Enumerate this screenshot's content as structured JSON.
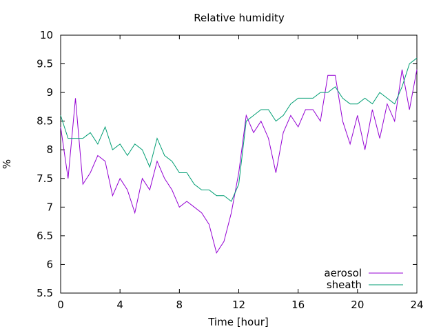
{
  "chart_data": {
    "type": "line",
    "title": "Relative humidity",
    "xlabel": "Time [hour]",
    "ylabel": "%",
    "xlim": [
      0,
      24
    ],
    "ylim": [
      5.5,
      10
    ],
    "xticks": [
      0,
      4,
      8,
      12,
      16,
      20,
      24
    ],
    "yticks": [
      5.5,
      6,
      6.5,
      7,
      7.5,
      8,
      8.5,
      9,
      9.5,
      10
    ],
    "ytick_labels": [
      "5.5",
      "6",
      "6.5",
      "7",
      "7.5",
      "8",
      "8.5",
      "9",
      "9.5",
      "10"
    ],
    "grid": false,
    "legend": "bottom-right",
    "x": [
      0,
      0.5,
      1,
      1.5,
      2,
      2.5,
      3,
      3.5,
      4,
      4.5,
      5,
      5.5,
      6,
      6.5,
      7,
      7.5,
      8,
      8.5,
      9,
      9.5,
      10,
      10.5,
      11,
      11.5,
      12,
      12.5,
      13,
      13.5,
      14,
      14.5,
      15,
      15.5,
      16,
      16.5,
      17,
      17.5,
      18,
      18.5,
      19,
      19.5,
      20,
      20.5,
      21,
      21.5,
      22,
      22.5,
      23,
      23.5,
      24
    ],
    "series": [
      {
        "name": "aerosol",
        "color": "#9400d3",
        "values": [
          8.4,
          7.5,
          8.9,
          7.4,
          7.6,
          7.9,
          7.8,
          7.2,
          7.5,
          7.3,
          6.9,
          7.5,
          7.3,
          7.8,
          7.5,
          7.3,
          7.0,
          7.1,
          7.0,
          6.9,
          6.7,
          6.2,
          6.4,
          6.9,
          7.6,
          8.6,
          8.3,
          8.5,
          8.2,
          7.6,
          8.3,
          8.6,
          8.4,
          8.7,
          8.7,
          8.5,
          9.3,
          9.3,
          8.5,
          8.1,
          8.6,
          8.0,
          8.7,
          8.2,
          8.8,
          8.5,
          9.4,
          8.7,
          9.4
        ]
      },
      {
        "name": "sheath",
        "color": "#009e73",
        "values": [
          8.6,
          8.2,
          8.2,
          8.2,
          8.3,
          8.1,
          8.4,
          8.0,
          8.1,
          7.9,
          8.1,
          8.0,
          7.7,
          8.2,
          7.9,
          7.8,
          7.6,
          7.6,
          7.4,
          7.3,
          7.3,
          7.2,
          7.2,
          7.1,
          7.4,
          8.5,
          8.6,
          8.7,
          8.7,
          8.5,
          8.6,
          8.8,
          8.9,
          8.9,
          8.9,
          9.0,
          9.0,
          9.1,
          8.9,
          8.8,
          8.8,
          8.9,
          8.8,
          9.0,
          8.9,
          8.8,
          9.1,
          9.5,
          9.6
        ]
      }
    ]
  }
}
